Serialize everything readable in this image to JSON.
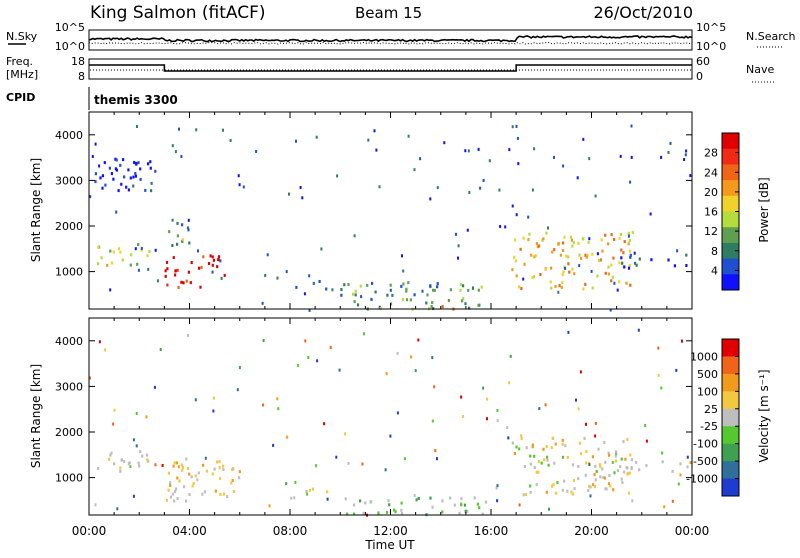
{
  "header": {
    "station": "King Salmon (fitACF)",
    "beam": "Beam 15",
    "date": "26/Oct/2010"
  },
  "top_panels": {
    "nsky_label": "N.Sky",
    "nsearch_label": "N.Search",
    "freq_label_1": "Freq.",
    "freq_label_2": "[MHz]",
    "nave_label": "Nave",
    "cpid_label": "CPID",
    "cpid_value": "themis 3300",
    "noise_left_ticks": [
      "10^5",
      "10^0"
    ],
    "noise_right_ticks": [
      "10^5",
      "10^0"
    ],
    "freq_left_ticks": [
      "18",
      "8"
    ],
    "freq_right_ticks": [
      "60",
      "0"
    ]
  },
  "chart_data": [
    {
      "type": "heatmap",
      "title": "",
      "xlabel": "Time UT",
      "ylabel": "Slant Range [km]",
      "x_ticks": [
        "00:00",
        "04:00",
        "08:00",
        "12:00",
        "16:00",
        "20:00",
        "00:00"
      ],
      "y_ticks": [
        "4000",
        "3000",
        "2000",
        "1000"
      ],
      "ylim": [
        180,
        4500
      ],
      "colorbar": {
        "label": "Power [dB]",
        "ticks": [
          "28",
          "24",
          "20",
          "16",
          "12",
          "8",
          "4"
        ],
        "colors": [
          "#1010ff",
          "#2050d0",
          "#2e7d62",
          "#5fa050",
          "#b4dc3c",
          "#f0d22a",
          "#f39a1c",
          "#f06418",
          "#f02a14",
          "#e00000"
        ]
      },
      "regions": [
        {
          "t": [
            0.3,
            2.4
          ],
          "r": [
            1150,
            1650
          ],
          "level": 0.45
        },
        {
          "t": [
            0.2,
            2.6
          ],
          "r": [
            2800,
            3500
          ],
          "level": 0.05,
          "sparse": true
        },
        {
          "t": [
            3.1,
            4.0
          ],
          "r": [
            1600,
            2300
          ],
          "level": 0.35
        },
        {
          "t": [
            3.0,
            5.6
          ],
          "r": [
            680,
            1400
          ],
          "level": 0.95
        },
        {
          "t": [
            8.2,
            9.6
          ],
          "r": [
            650,
            820
          ],
          "level": 0.3
        },
        {
          "t": [
            10.0,
            15.8
          ],
          "r": [
            200,
            800
          ],
          "level": 0.3
        },
        {
          "t": [
            14.0,
            15.0
          ],
          "r": [
            200,
            300
          ],
          "level": 0.9
        },
        {
          "t": [
            16.8,
            21.6
          ],
          "r": [
            650,
            1900
          ],
          "level": 0.6
        },
        {
          "t": [
            21.0,
            23.8
          ],
          "r": [
            1100,
            1400
          ],
          "level": 0.15
        }
      ]
    },
    {
      "type": "heatmap",
      "title": "",
      "xlabel": "Time UT",
      "ylabel": "Slant Range [km]",
      "x_ticks": [
        "00:00",
        "04:00",
        "08:00",
        "12:00",
        "16:00",
        "20:00",
        "00:00"
      ],
      "y_ticks": [
        "4000",
        "3000",
        "2000",
        "1000"
      ],
      "ylim": [
        180,
        4500
      ],
      "colorbar": {
        "label": "Velocity [m s⁻¹]",
        "ticks": [
          "1000",
          "500",
          "100",
          "25",
          "-25",
          "-100",
          "-500",
          "-1000"
        ],
        "colors": [
          "#1e3cd0",
          "#2f6f9a",
          "#3fa050",
          "#55c830",
          "#bebebe",
          "#f2c840",
          "#f39a1c",
          "#f0641a",
          "#e00000"
        ]
      },
      "regions": [
        {
          "t": [
            0.3,
            2.4
          ],
          "r": [
            1150,
            1650
          ],
          "mode": "gray"
        },
        {
          "t": [
            3.1,
            6.0
          ],
          "r": [
            600,
            1450
          ],
          "mode": "orange"
        },
        {
          "t": [
            3.2,
            4.5
          ],
          "r": [
            450,
            900
          ],
          "mode": "gray"
        },
        {
          "t": [
            8.2,
            9.6
          ],
          "r": [
            650,
            820
          ],
          "mode": "orange"
        },
        {
          "t": [
            10.0,
            15.8
          ],
          "r": [
            200,
            600
          ],
          "mode": "green"
        },
        {
          "t": [
            16.8,
            21.6
          ],
          "r": [
            650,
            1900
          ],
          "mode": "mixed"
        },
        {
          "t": [
            21.0,
            23.8
          ],
          "r": [
            1100,
            1400
          ],
          "mode": "gray"
        }
      ]
    }
  ]
}
